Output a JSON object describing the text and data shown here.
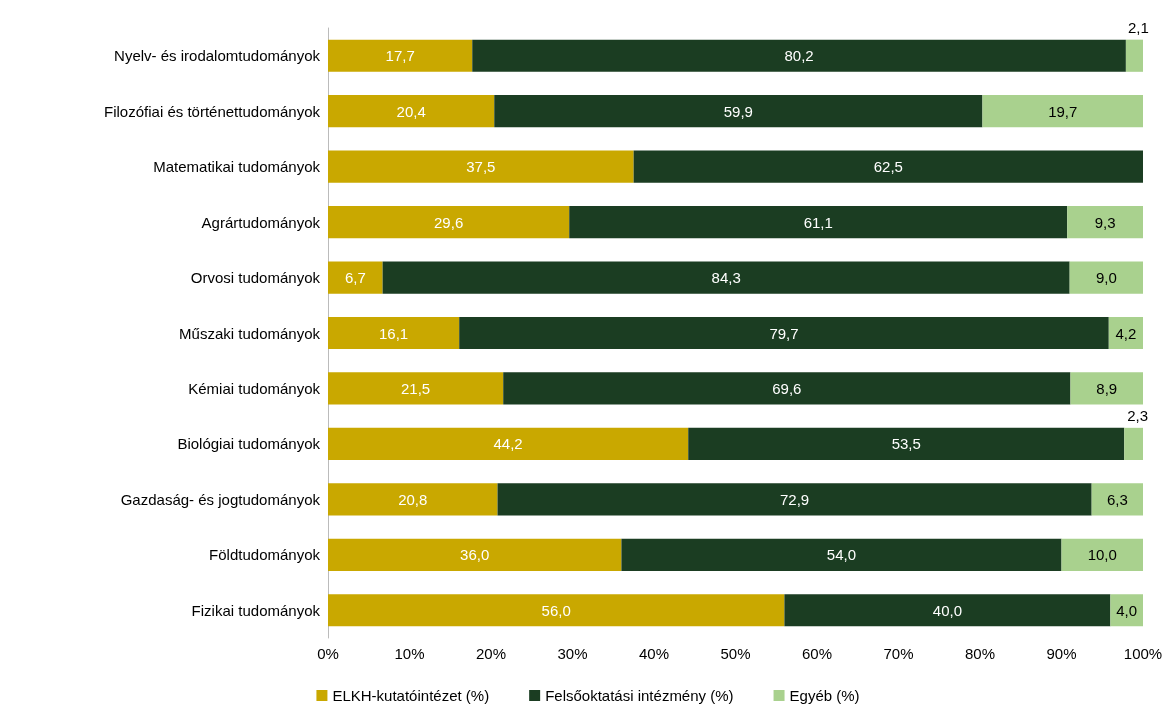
{
  "chart_data": {
    "type": "bar",
    "orientation": "horizontal",
    "stacked": true,
    "categories": [
      "Nyelv- és irodalomtudományok",
      "Filozófiai és történettudományok",
      "Matematikai tudományok",
      "Agrártudományok",
      "Orvosi tudományok",
      "Műszaki tudományok",
      "Kémiai tudományok",
      "Biológiai tudományok",
      "Gazdaság- és jogtudományok",
      "Földtudományok",
      "Fizikai tudományok"
    ],
    "series": [
      {
        "name": "ELKH-kutatóintézet (%)",
        "color": "#c9a800",
        "values": [
          17.7,
          20.4,
          37.5,
          29.6,
          6.7,
          16.1,
          21.5,
          44.2,
          20.8,
          36.0,
          56.0
        ],
        "value_labels": [
          "17,7",
          "20,4",
          "37,5",
          "29,6",
          "6,7",
          "16,1",
          "21,5",
          "44,2",
          "20,8",
          "36,0",
          "56,0"
        ]
      },
      {
        "name": "Felsőoktatási intézmény (%)",
        "color": "#1b3d22",
        "values": [
          80.2,
          59.9,
          62.5,
          61.1,
          84.3,
          79.7,
          69.6,
          53.5,
          72.9,
          54.0,
          40.0
        ],
        "value_labels": [
          "80,2",
          "59,9",
          "62,5",
          "61,1",
          "84,3",
          "79,7",
          "69,6",
          "53,5",
          "72,9",
          "54,0",
          "40,0"
        ]
      },
      {
        "name": "Egyéb (%)",
        "color": "#a9d18e",
        "values": [
          2.1,
          19.7,
          0,
          9.3,
          9.0,
          4.2,
          8.9,
          2.3,
          6.3,
          10.0,
          4.0
        ],
        "value_labels": [
          "2,1",
          "19,7",
          null,
          "9,3",
          "9,0",
          "4,2",
          "8,9",
          "2,3",
          "6,3",
          "10,0",
          "4,0"
        ]
      }
    ],
    "xlim": [
      0,
      100
    ],
    "xticks": [
      {
        "value": 0,
        "label": "0%"
      },
      {
        "value": 10,
        "label": "10%"
      },
      {
        "value": 20,
        "label": "20%"
      },
      {
        "value": 30,
        "label": "30%"
      },
      {
        "value": 40,
        "label": "40%"
      },
      {
        "value": 50,
        "label": "50%"
      },
      {
        "value": 60,
        "label": "60%"
      },
      {
        "value": 70,
        "label": "70%"
      },
      {
        "value": 80,
        "label": "80%"
      },
      {
        "value": 90,
        "label": "90%"
      },
      {
        "value": 100,
        "label": "100%"
      }
    ],
    "grid": false,
    "legend": "bottom"
  }
}
